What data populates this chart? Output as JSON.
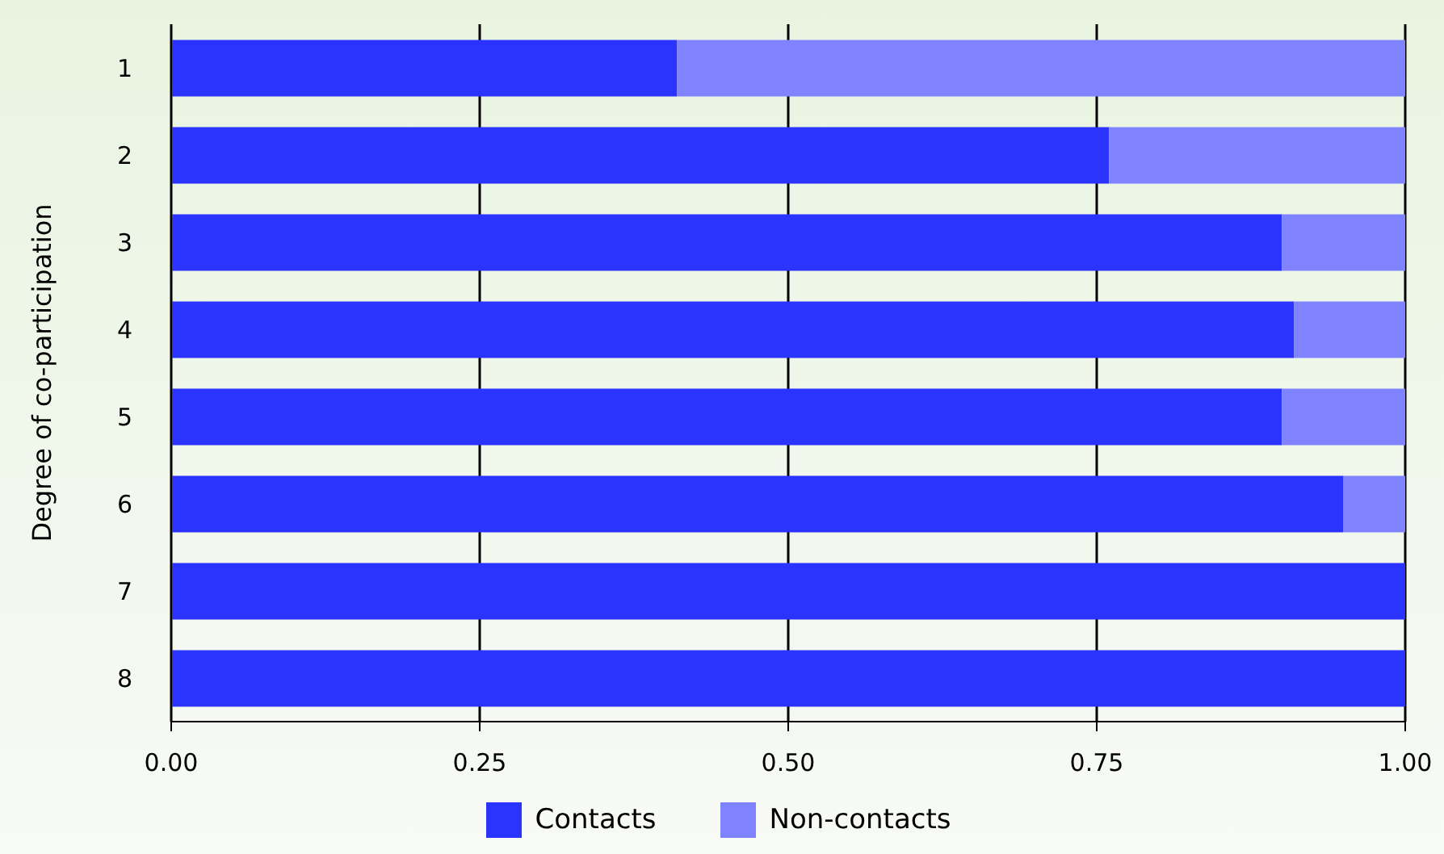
{
  "chart_data": {
    "type": "bar",
    "orientation": "horizontal",
    "stacked": true,
    "ylabel": "Degree of co-participation",
    "categories": [
      "1",
      "2",
      "3",
      "4",
      "5",
      "6",
      "7",
      "8"
    ],
    "series": [
      {
        "name": "Contacts",
        "color": "#2b33ff",
        "values": [
          0.41,
          0.76,
          0.9,
          0.91,
          0.9,
          0.95,
          1,
          1
        ]
      },
      {
        "name": "Non-contacts",
        "color": "#8083ff",
        "values": [
          0.59,
          0.24,
          0.1,
          0.09,
          0.1,
          0.05,
          0,
          0
        ]
      }
    ],
    "xlim": [
      0,
      1
    ],
    "xticks": [
      {
        "value": 0,
        "label": "0.00"
      },
      {
        "value": 0.25,
        "label": "0.25"
      },
      {
        "value": 0.5,
        "label": "0.50"
      },
      {
        "value": 0.75,
        "label": "0.75"
      },
      {
        "value": 1,
        "label": "1.00"
      }
    ],
    "grid": "x",
    "legend": "bottom"
  }
}
